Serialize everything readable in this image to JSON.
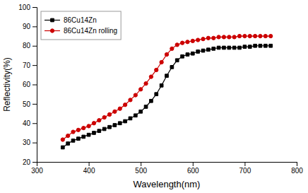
{
  "chart_data": {
    "type": "line",
    "xlabel": "Wavelength(nm)",
    "ylabel": "Reflectivity(%)",
    "x": [
      350,
      360,
      370,
      380,
      390,
      400,
      410,
      420,
      430,
      440,
      450,
      460,
      470,
      480,
      490,
      500,
      510,
      520,
      530,
      540,
      550,
      560,
      570,
      580,
      590,
      600,
      610,
      620,
      630,
      640,
      650,
      660,
      670,
      680,
      690,
      700,
      710,
      720,
      730,
      740,
      750
    ],
    "xlim": [
      300,
      800
    ],
    "ylim": [
      20,
      100
    ],
    "xticks": [
      300,
      400,
      500,
      600,
      700,
      800
    ],
    "yticks": [
      20,
      30,
      40,
      50,
      60,
      70,
      80,
      90,
      100
    ],
    "grid": false,
    "legend": "upper left",
    "series": [
      {
        "name": "86Cu14Zn",
        "color": "#000000",
        "marker": "square",
        "values": [
          27.5,
          29.5,
          31.0,
          32.0,
          33.0,
          34.0,
          35.0,
          36.0,
          37.0,
          38.0,
          39.0,
          40.0,
          41.0,
          42.5,
          44.0,
          46.0,
          48.5,
          51.5,
          55.0,
          59.5,
          64.5,
          69.0,
          72.5,
          74.5,
          75.5,
          76.0,
          77.0,
          77.5,
          78.0,
          78.5,
          79.0,
          79.0,
          79.0,
          79.0,
          79.0,
          79.5,
          79.5,
          80.0,
          80.0,
          80.0,
          80.0
        ]
      },
      {
        "name": "86Cu14Zn rolling",
        "color": "#cc0000",
        "marker": "circle",
        "values": [
          31.5,
          33.5,
          35.5,
          36.5,
          37.5,
          38.5,
          40.0,
          41.5,
          43.0,
          44.5,
          46.0,
          47.5,
          49.5,
          52.0,
          54.5,
          57.5,
          60.5,
          64.0,
          67.5,
          71.5,
          75.5,
          78.5,
          80.5,
          81.5,
          82.0,
          82.5,
          83.0,
          83.5,
          84.0,
          84.0,
          84.5,
          84.5,
          84.5,
          84.5,
          85.0,
          85.0,
          85.0,
          85.0,
          85.0,
          85.0,
          85.0
        ]
      }
    ]
  }
}
